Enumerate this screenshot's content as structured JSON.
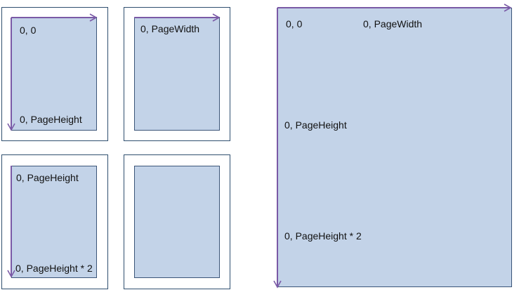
{
  "colors": {
    "page_fill": "#c3d3e8",
    "frame_border": "#2f4f6f",
    "arrow": "#7a5aa6"
  },
  "labels": {
    "origin": "0, 0",
    "page_width": "0, PageWidth",
    "page_height": "0, PageHeight",
    "page_height_x2": "0, PageHeight * 2"
  }
}
